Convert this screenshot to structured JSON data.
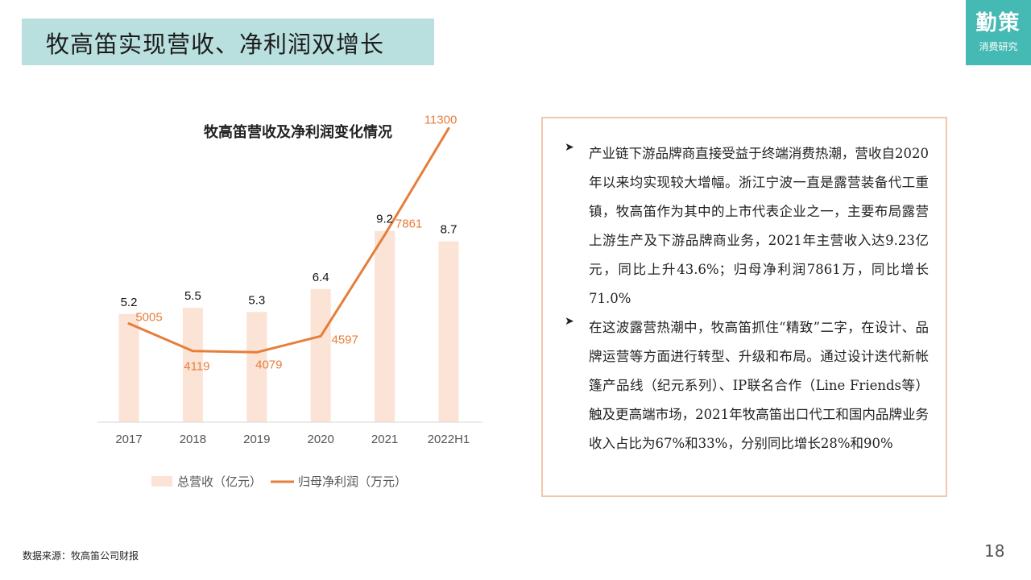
{
  "header": {
    "title": "牧高笛实现营收、净利润双增长",
    "logo_main": "勤策",
    "logo_sub": "消费研究"
  },
  "chart_data": {
    "type": "bar",
    "title": "牧高笛营收及净利润变化情况",
    "categories": [
      "2017",
      "2018",
      "2019",
      "2020",
      "2021",
      "2022H1"
    ],
    "series": [
      {
        "name": "总营收（亿元）",
        "type": "bar",
        "color": "#fbe3d6",
        "values": [
          5.2,
          5.5,
          5.3,
          6.4,
          9.2,
          8.7
        ],
        "labels": [
          "5.2",
          "5.5",
          "5.3",
          "6.4",
          "9.2",
          "8.7"
        ]
      },
      {
        "name": "归母净利润（万元）",
        "type": "line",
        "color": "#e67e3a",
        "values": [
          5005,
          4119,
          4079,
          4597,
          7861,
          11300
        ],
        "labels": [
          "5005",
          "4119",
          "4079",
          "4597",
          "7861",
          "11300"
        ]
      }
    ],
    "legend_position": "bottom",
    "grid": false
  },
  "notes": {
    "para1": "产业链下游品牌商直接受益于终端消费热潮，营收自2020年以来均实现较大增幅。浙江宁波一直是露营装备代工重镇，牧高笛作为其中的上市代表企业之一，主要布局露营上游生产及下游品牌商业务，2021年主营收入达9.23亿元，同比上升43.6%；归母净利润7861万，同比增长71.0%",
    "para2": "在这波露营热潮中，牧高笛抓住“精致”二字，在设计、品牌运营等方面进行转型、升级和布局。通过设计迭代新帐篷产品线（纪元系列）、IP联名合作（Line Friends等）触及更高端市场，2021年牧高笛出口代工和国内品牌业务收入占比为67%和33%，分别同比增长28%和90%"
  },
  "footer": {
    "source": "数据来源：牧高笛公司财报",
    "page_number": "18"
  }
}
